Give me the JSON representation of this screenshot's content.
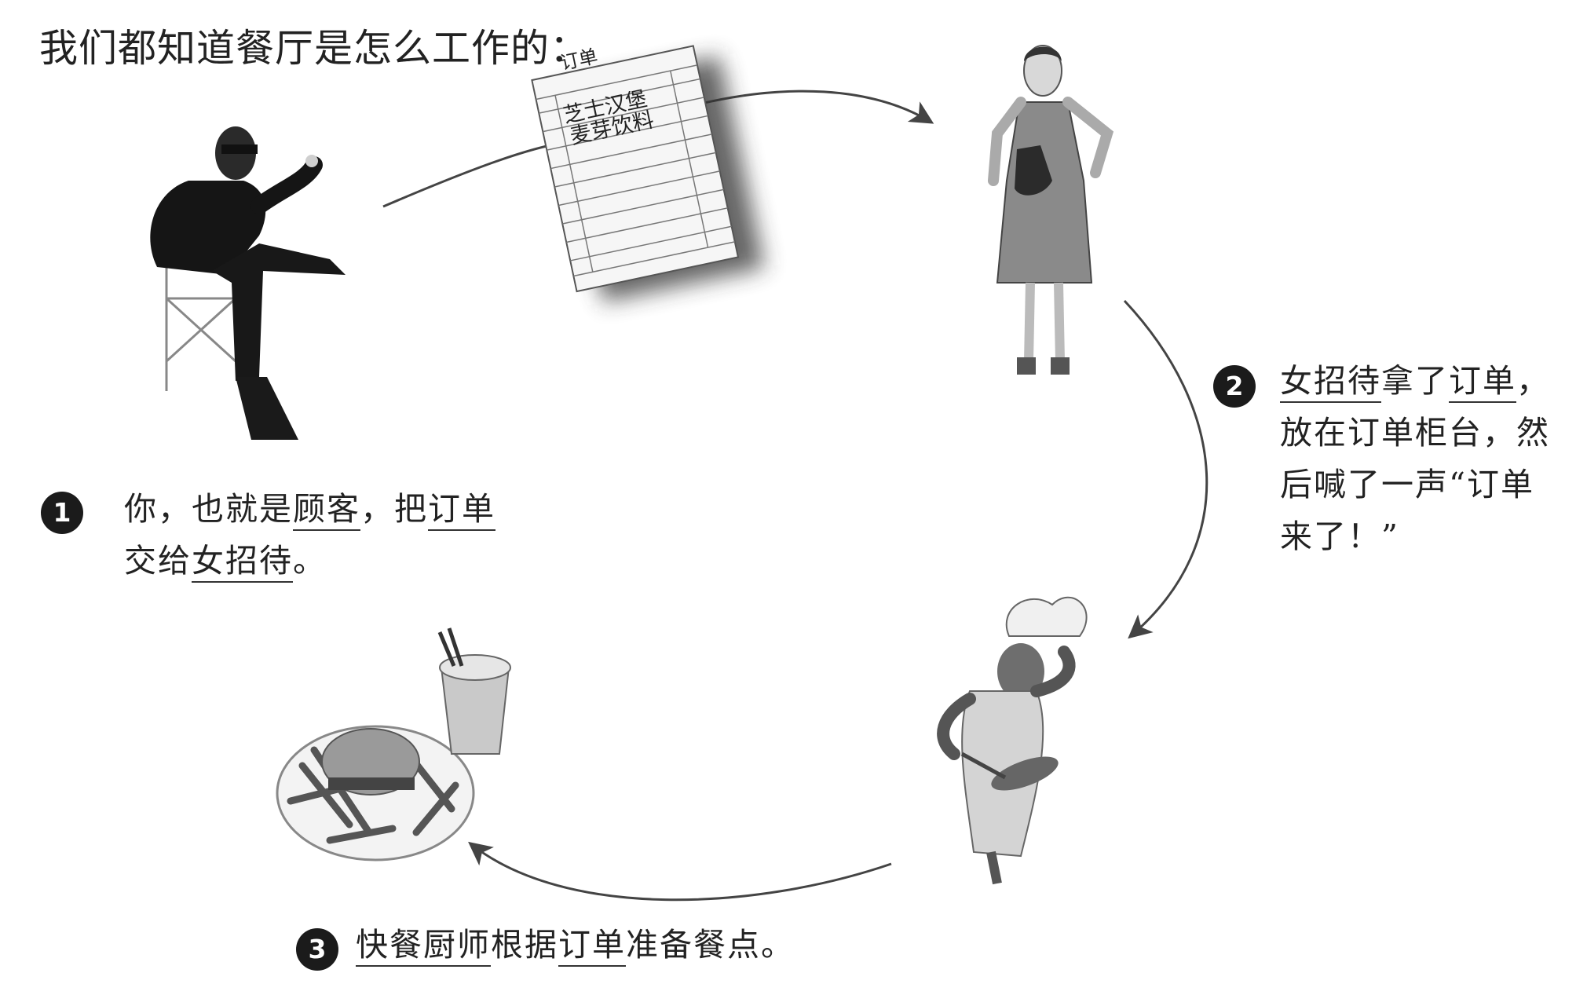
{
  "title": "我们都知道餐厅是怎么工作的：",
  "ticket": {
    "header": "订单",
    "items": [
      "芝士汉堡",
      "麦芽饮料"
    ]
  },
  "steps": [
    {
      "number": "1",
      "lines": [
        [
          {
            "text": "你，也就是",
            "underline": false
          },
          {
            "text": "顾客",
            "underline": true
          },
          {
            "text": "，把",
            "underline": false
          },
          {
            "text": "订单",
            "underline": true
          }
        ],
        [
          {
            "text": "交给",
            "underline": false
          },
          {
            "text": "女招待",
            "underline": true
          },
          {
            "text": "。",
            "underline": false
          }
        ]
      ]
    },
    {
      "number": "2",
      "lines": [
        [
          {
            "text": "女招待",
            "underline": true
          },
          {
            "text": "拿了",
            "underline": false
          },
          {
            "text": "订单",
            "underline": true
          },
          {
            "text": "，",
            "underline": false
          }
        ],
        [
          {
            "text": "放在订单柜台，然",
            "underline": false
          }
        ],
        [
          {
            "text": "后喊了一声“订单",
            "underline": false
          }
        ],
        [
          {
            "text": "来了！”",
            "underline": false
          }
        ]
      ]
    },
    {
      "number": "3",
      "lines": [
        [
          {
            "text": "快餐厨师",
            "underline": true
          },
          {
            "text": "根据",
            "underline": false
          },
          {
            "text": "订单",
            "underline": true
          },
          {
            "text": "准备餐点。",
            "underline": false
          }
        ]
      ]
    }
  ],
  "colors": {
    "ink": "#1e1e1e",
    "badge": "#1b1b1b",
    "arrow": "#444444"
  }
}
